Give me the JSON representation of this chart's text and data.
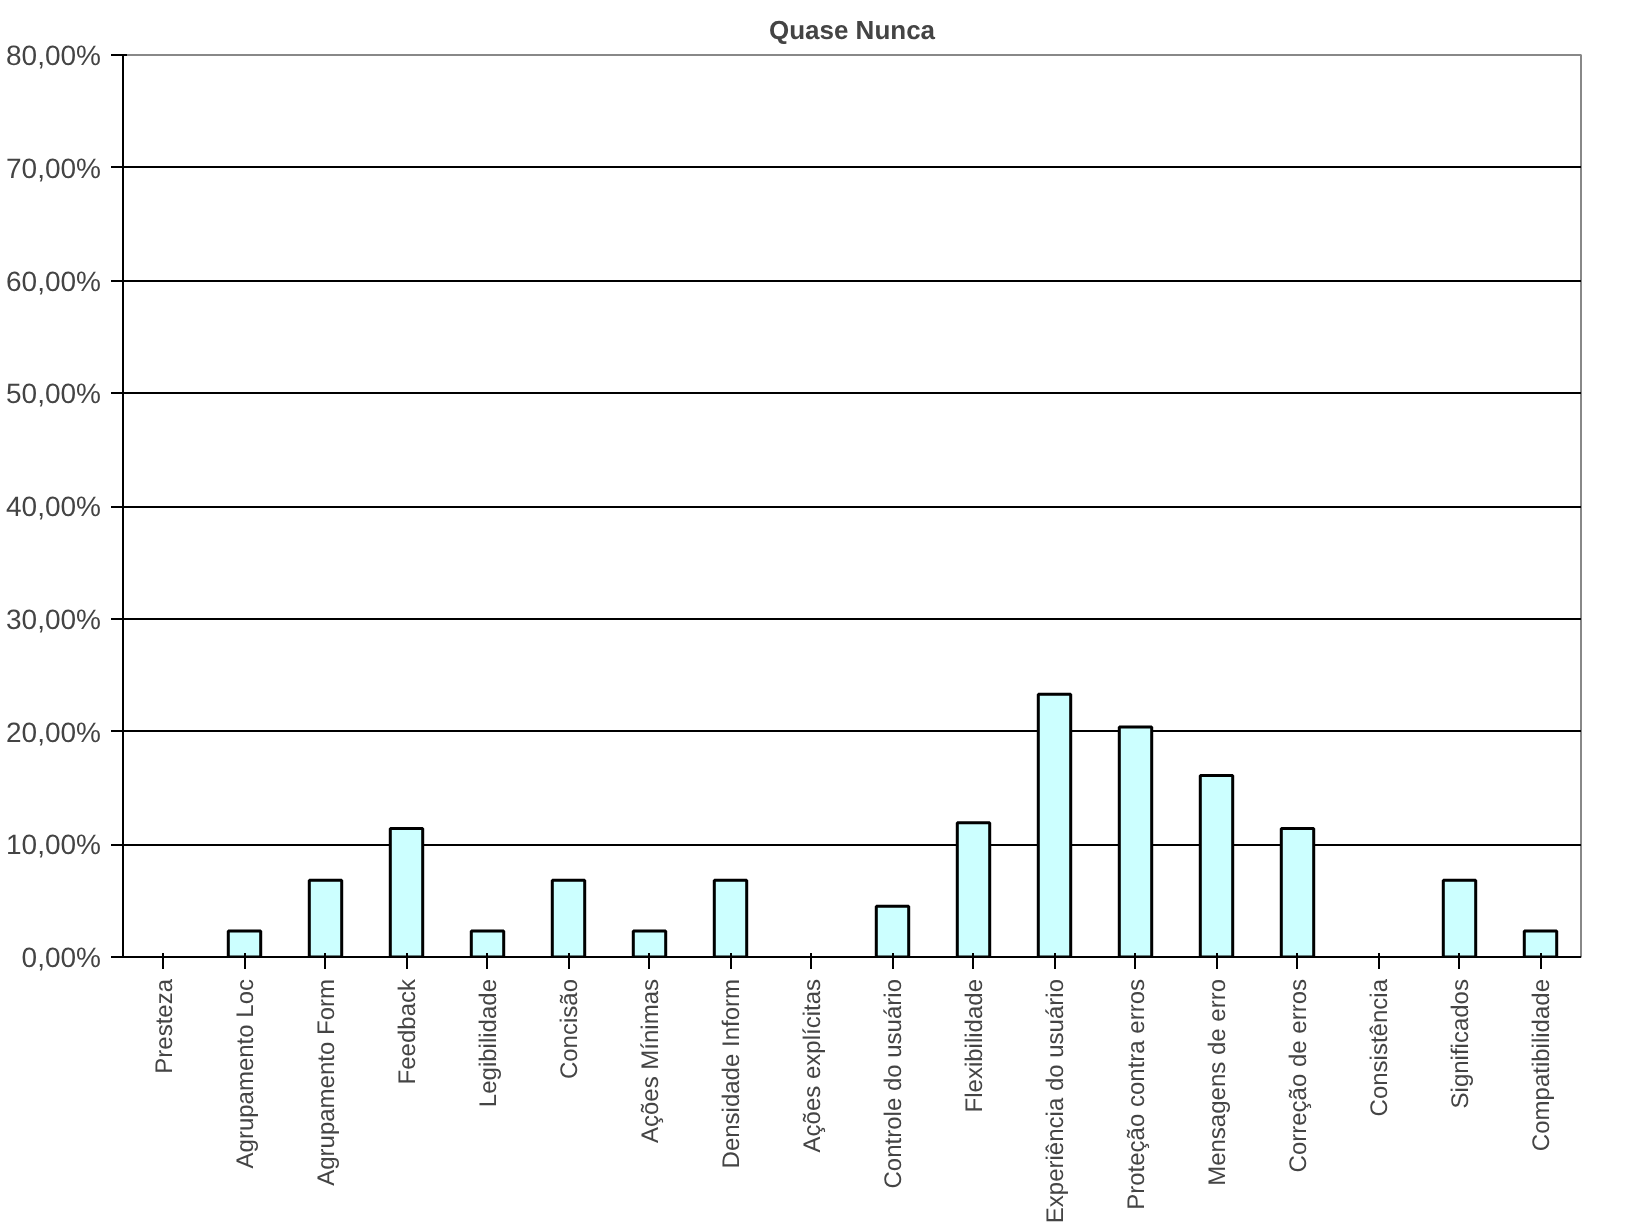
{
  "chart_data": {
    "type": "bar",
    "title": "Quase Nunca",
    "categories": [
      "Presteza",
      "Agrupamento Loc",
      "Agrupamento Form",
      "Feedback",
      "Legibilidade",
      "Concisão",
      "Ações Mínimas",
      "Densidade Inform",
      "Ações explícitas",
      "Controle do usuário",
      "Flexibilidade",
      "Experiência do usuário",
      "Proteção contra erros",
      "Mensagens de erro",
      "Correção de erros",
      "Consistência",
      "Significados",
      "Compatibilidade"
    ],
    "values": [
      null,
      2.3,
      6.8,
      11.4,
      2.3,
      6.8,
      2.3,
      6.8,
      null,
      4.5,
      11.9,
      23.3,
      20.4,
      16.1,
      11.4,
      null,
      6.8,
      2.3
    ],
    "color": "#ccffff",
    "ylim": [
      0,
      80
    ],
    "yticks": [
      {
        "value": 0,
        "label": "0,00%"
      },
      {
        "value": 10,
        "label": "10,00%"
      },
      {
        "value": 20,
        "label": "20,00%"
      },
      {
        "value": 30,
        "label": "30,00%"
      },
      {
        "value": 40,
        "label": "40,00%"
      },
      {
        "value": 50,
        "label": "50,00%"
      },
      {
        "value": 60,
        "label": "60,00%"
      },
      {
        "value": 70,
        "label": "70,00%"
      },
      {
        "value": 80,
        "label": "80,00%"
      }
    ],
    "grid": "y"
  }
}
